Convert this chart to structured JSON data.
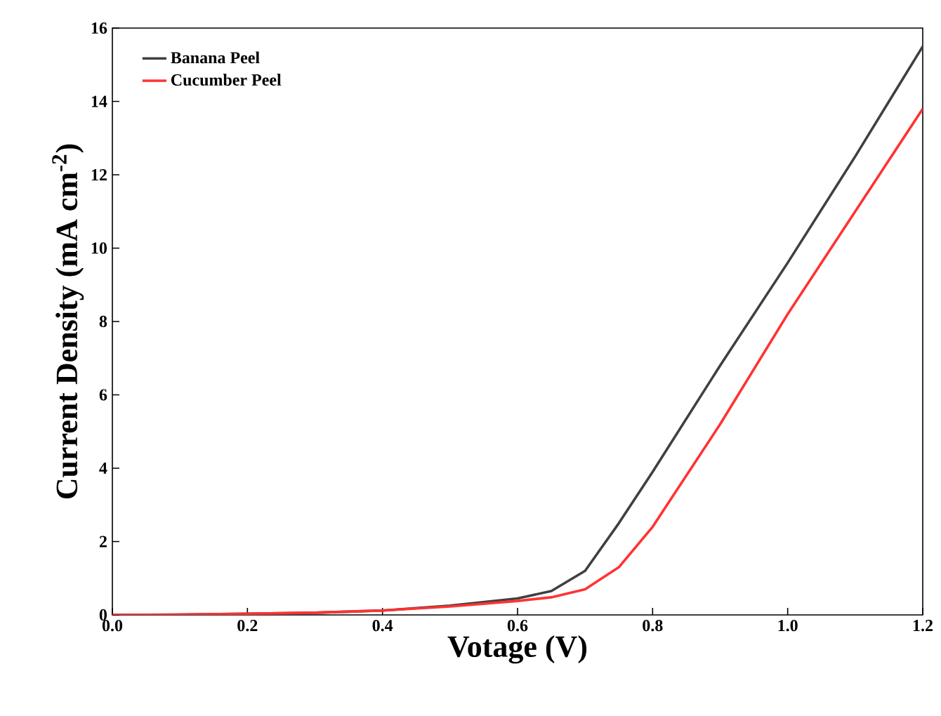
{
  "chart_data": {
    "type": "line",
    "xlabel": "Votage (V)",
    "ylabel": "Current Density (mA cm$^{-2}$)",
    "xlim": [
      0,
      1.2
    ],
    "ylim": [
      0,
      16
    ],
    "xticks": [
      {
        "value": 0,
        "label": "0.0"
      },
      {
        "value": 0.2,
        "label": "0.2"
      },
      {
        "value": 0.4,
        "label": "0.4"
      },
      {
        "value": 0.6,
        "label": "0.6"
      },
      {
        "value": 0.8,
        "label": "0.8"
      },
      {
        "value": 1.0,
        "label": "1.0"
      },
      {
        "value": 1.2,
        "label": "1.2"
      }
    ],
    "yticks": [
      0,
      2,
      4,
      6,
      8,
      10,
      12,
      14,
      16
    ],
    "legend": "top left",
    "grid": false,
    "marker": "none",
    "line_style": "solid",
    "series": [
      {
        "name": "Banana Peel",
        "color": "#404040",
        "x": [
          0,
          0.1,
          0.2,
          0.3,
          0.4,
          0.5,
          0.6,
          0.65,
          0.7,
          0.75,
          0.8,
          0.9,
          1.0,
          1.1,
          1.2
        ],
        "values": [
          0,
          0.01,
          0.03,
          0.06,
          0.12,
          0.25,
          0.45,
          0.65,
          1.2,
          2.5,
          3.9,
          6.8,
          9.6,
          12.5,
          15.5
        ]
      },
      {
        "name": "Cucumber Peel",
        "color": "#ff3333",
        "x": [
          0,
          0.1,
          0.2,
          0.3,
          0.4,
          0.5,
          0.6,
          0.65,
          0.7,
          0.75,
          0.8,
          0.9,
          1.0,
          1.1,
          1.2
        ],
        "values": [
          0,
          0.01,
          0.03,
          0.06,
          0.12,
          0.23,
          0.38,
          0.48,
          0.7,
          1.3,
          2.4,
          5.2,
          8.2,
          11.0,
          13.8
        ]
      }
    ]
  }
}
